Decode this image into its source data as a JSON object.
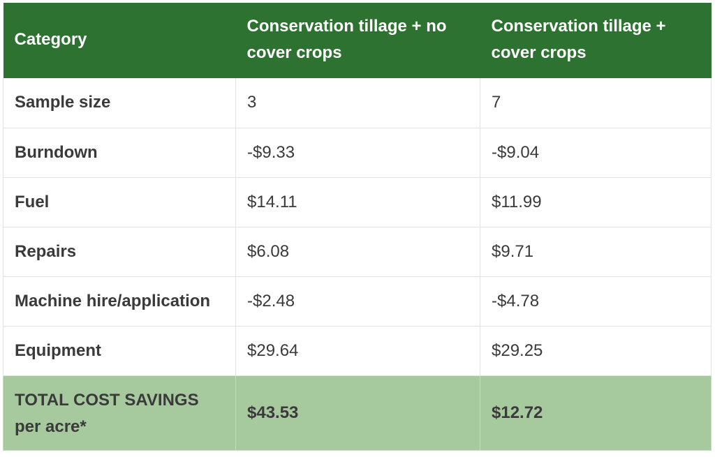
{
  "table": {
    "headers": [
      "Category",
      "Conservation tillage + no cover crops",
      "Conservation tillage + cover crops"
    ],
    "rows": [
      [
        "Sample size",
        "3",
        "7"
      ],
      [
        "Burndown",
        "-$9.33",
        "-$9.04"
      ],
      [
        "Fuel",
        "$14.11",
        "$11.99"
      ],
      [
        "Repairs",
        "$6.08",
        "$9.71"
      ],
      [
        "Machine hire/application",
        "-$2.48",
        "-$4.78"
      ],
      [
        "Equipment",
        "$29.64",
        "$29.25"
      ]
    ],
    "total_row": [
      "TOTAL COST SAVINGS per acre*",
      "$43.53",
      "$12.72"
    ]
  },
  "colors": {
    "header_bg": "#2d7230",
    "total_bg": "#a6c99d",
    "border": "#e2e2e2"
  }
}
